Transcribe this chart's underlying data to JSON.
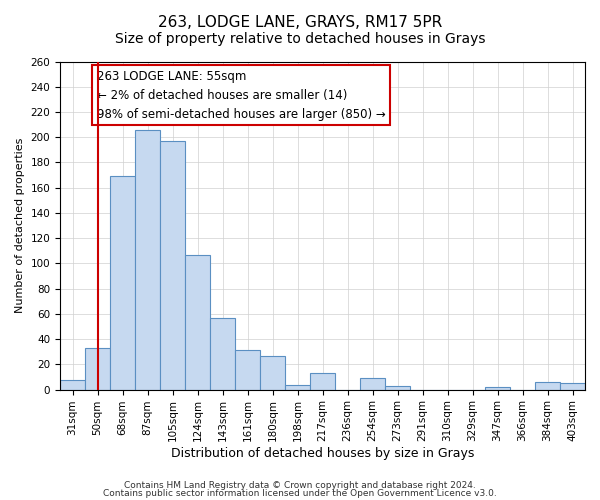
{
  "title": "263, LODGE LANE, GRAYS, RM17 5PR",
  "subtitle": "Size of property relative to detached houses in Grays",
  "xlabel": "Distribution of detached houses by size in Grays",
  "ylabel": "Number of detached properties",
  "categories": [
    "31sqm",
    "50sqm",
    "68sqm",
    "87sqm",
    "105sqm",
    "124sqm",
    "143sqm",
    "161sqm",
    "180sqm",
    "198sqm",
    "217sqm",
    "236sqm",
    "254sqm",
    "273sqm",
    "291sqm",
    "310sqm",
    "329sqm",
    "347sqm",
    "366sqm",
    "384sqm",
    "403sqm"
  ],
  "values": [
    8,
    33,
    169,
    206,
    197,
    107,
    57,
    31,
    27,
    4,
    13,
    0,
    9,
    3,
    0,
    0,
    0,
    2,
    0,
    6,
    5
  ],
  "bar_color": "#c6d9f0",
  "bar_edge_color": "#5a8fc2",
  "vline_x_index": 1,
  "vline_color": "#cc0000",
  "annotation_title": "263 LODGE LANE: 55sqm",
  "annotation_line1": "← 2% of detached houses are smaller (14)",
  "annotation_line2": "98% of semi-detached houses are larger (850) →",
  "annotation_box_edge": "#cc0000",
  "ylim": [
    0,
    260
  ],
  "yticks": [
    0,
    20,
    40,
    60,
    80,
    100,
    120,
    140,
    160,
    180,
    200,
    220,
    240,
    260
  ],
  "footer1": "Contains HM Land Registry data © Crown copyright and database right 2024.",
  "footer2": "Contains public sector information licensed under the Open Government Licence v3.0.",
  "title_fontsize": 11,
  "xlabel_fontsize": 9,
  "ylabel_fontsize": 8,
  "tick_fontsize": 7.5,
  "annotation_fontsize": 8.5,
  "footer_fontsize": 6.5
}
